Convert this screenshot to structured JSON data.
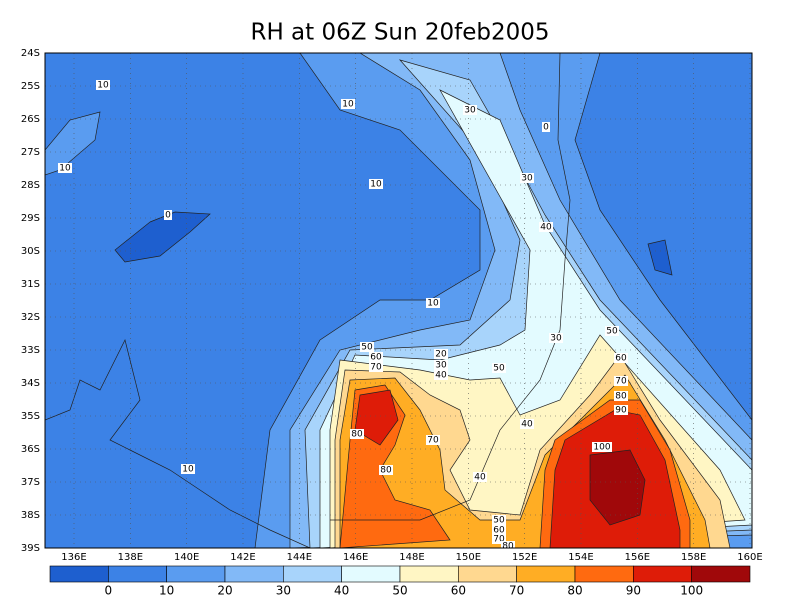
{
  "title": "RH at 06Z Sun 20feb2005",
  "lat_labels": [
    "24S",
    "25S",
    "26S",
    "27S",
    "28S",
    "29S",
    "30S",
    "31S",
    "32S",
    "33S",
    "34S",
    "35S",
    "36S",
    "37S",
    "38S",
    "39S"
  ],
  "lon_labels": [
    "136E",
    "138E",
    "140E",
    "142E",
    "144E",
    "146E",
    "148E",
    "150E",
    "152E",
    "154E",
    "156E",
    "158E",
    "160E"
  ],
  "colorbar": {
    "colors": [
      "#1e5fcf",
      "#3c82e6",
      "#5a9cf0",
      "#82b9f7",
      "#a8d4fb",
      "#e3fbff",
      "#fff6c4",
      "#ffd890",
      "#ffad24",
      "#ff6a10",
      "#de1c08",
      "#a0080a"
    ],
    "labels": [
      0,
      10,
      20,
      30,
      40,
      50,
      60,
      70,
      80,
      90,
      100
    ]
  },
  "contour_labels": [
    "10",
    "10",
    "30",
    "0",
    "10",
    "10",
    "30",
    "0",
    "40",
    "10",
    "50",
    "30",
    "50",
    "60",
    "70",
    "20",
    "30",
    "40",
    "50",
    "60",
    "70",
    "80",
    "90",
    "80",
    "70",
    "40",
    "100",
    "10",
    "80",
    "40",
    "50",
    "60",
    "70",
    "80"
  ]
}
